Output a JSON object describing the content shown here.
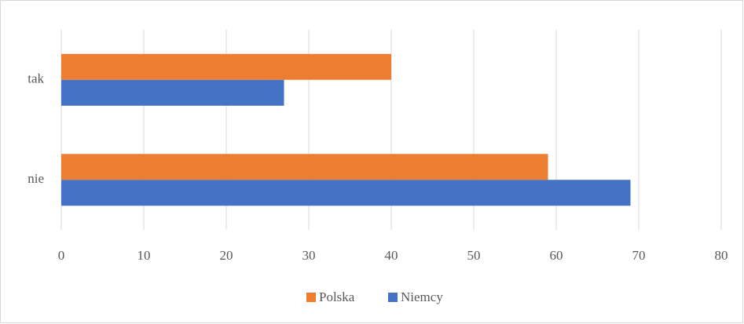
{
  "chart_data": {
    "type": "bar",
    "orientation": "horizontal",
    "categories": [
      "tak",
      "nie"
    ],
    "series": [
      {
        "name": "Polska",
        "color": "#ed7d31",
        "values": [
          40,
          59
        ]
      },
      {
        "name": "Niemcy",
        "color": "#4472c4",
        "values": [
          27,
          69
        ]
      }
    ],
    "xlim": [
      0,
      80
    ],
    "xticks": [
      0,
      10,
      20,
      30,
      40,
      50,
      60,
      70,
      80
    ],
    "grid": true,
    "legend": "bottom"
  }
}
